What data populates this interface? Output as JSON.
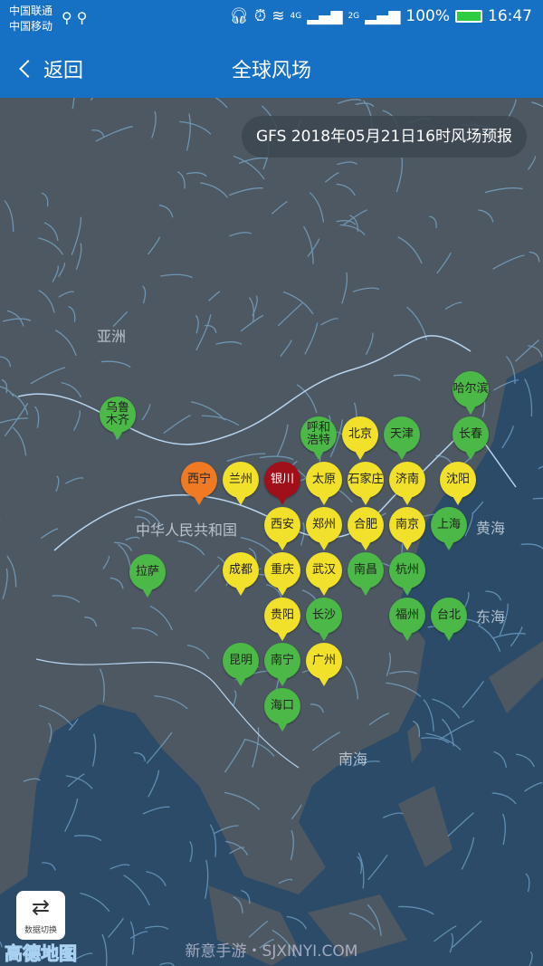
{
  "status_bar": {
    "carrier1": "中国联通",
    "carrier2": "中国移动",
    "net1": "4G",
    "net2": "2G",
    "battery": "100%",
    "time": "16:47"
  },
  "nav": {
    "back_label": "返回",
    "title": "全球风场"
  },
  "forecast_label": "GFS 2018年05月21日16时风场预报",
  "colors": {
    "green": "#4cb848",
    "yellow": "#f2e12a",
    "orange": "#f07a24",
    "darkred": "#a0101a",
    "header": "#1670c4"
  },
  "map_labels": [
    "亚洲",
    "中华人民共和国",
    "黄海",
    "东海",
    "南海"
  ],
  "cities": [
    {
      "name": "乌鲁木齐",
      "level": "green"
    },
    {
      "name": "拉萨",
      "level": "green"
    },
    {
      "name": "兰州",
      "level": "yellow"
    },
    {
      "name": "西宁",
      "level": "orange"
    },
    {
      "name": "银川",
      "level": "darkred"
    },
    {
      "name": "呼和浩特",
      "level": "green"
    },
    {
      "name": "天津",
      "level": "green"
    },
    {
      "name": "石家庄",
      "level": "yellow"
    },
    {
      "name": "北京",
      "level": "yellow"
    },
    {
      "name": "太原",
      "level": "yellow"
    },
    {
      "name": "济南",
      "level": "yellow"
    },
    {
      "name": "郑州",
      "level": "yellow"
    },
    {
      "name": "西安",
      "level": "yellow"
    },
    {
      "name": "哈尔滨",
      "level": "green"
    },
    {
      "name": "长春",
      "level": "green"
    },
    {
      "name": "沈阳",
      "level": "yellow"
    },
    {
      "name": "上海",
      "level": "green"
    },
    {
      "name": "杭州",
      "level": "green"
    },
    {
      "name": "南京",
      "level": "yellow"
    },
    {
      "name": "南昌",
      "level": "green"
    },
    {
      "name": "长沙",
      "level": "green"
    },
    {
      "name": "武汉",
      "level": "yellow"
    },
    {
      "name": "合肥",
      "level": "yellow"
    },
    {
      "name": "成都",
      "level": "yellow"
    },
    {
      "name": "重庆",
      "level": "yellow"
    },
    {
      "name": "贵阳",
      "level": "yellow"
    },
    {
      "name": "昆明",
      "level": "green"
    },
    {
      "name": "台北",
      "level": "green"
    },
    {
      "name": "福州",
      "level": "green"
    },
    {
      "name": "南宁",
      "level": "green"
    },
    {
      "name": "广州",
      "level": "yellow"
    },
    {
      "name": "海口",
      "level": "green"
    }
  ],
  "switch_label": "数据切换",
  "logo": "高德地图",
  "watermark": "新意手游・SJXINYI.COM"
}
